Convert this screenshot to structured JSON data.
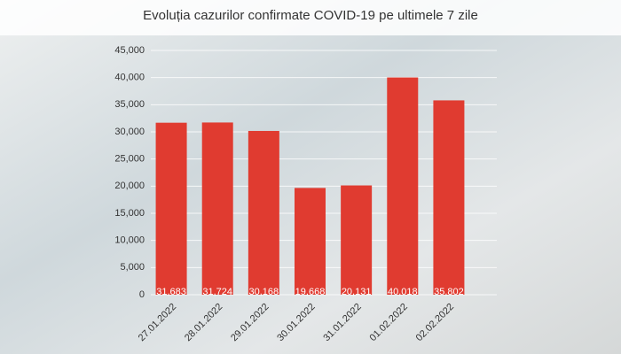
{
  "chart_data": {
    "type": "bar",
    "title": "Evoluția cazurilor confirmate COVID-19 pe ultimele 7 zile",
    "categories": [
      "27.01.2022",
      "28.01.2022",
      "29.01.2022",
      "30.01.2022",
      "31.01.2022",
      "01.02.2022",
      "02.02.2022"
    ],
    "values": [
      31683,
      31724,
      30168,
      19668,
      20131,
      40018,
      35802
    ],
    "value_labels": [
      "31,683",
      "31,724",
      "30,168",
      "19,668",
      "20,131",
      "40,018",
      "35,802"
    ],
    "color": "#e03b30",
    "ylim": [
      0,
      45000
    ],
    "yticks": [
      0,
      {
        "value": 5000,
        "label": "5,000"
      },
      {
        "value": 10000,
        "label": "10,000"
      },
      {
        "value": 15000,
        "label": "15,000"
      },
      {
        "value": 20000,
        "label": "20,000"
      },
      {
        "value": 25000,
        "label": "25,000"
      },
      {
        "value": 30000,
        "label": "30,000"
      },
      {
        "value": 35000,
        "label": "35,000"
      },
      {
        "value": 40000,
        "label": "40,000"
      },
      {
        "value": 45000,
        "label": "45,000"
      }
    ],
    "grid": true
  }
}
